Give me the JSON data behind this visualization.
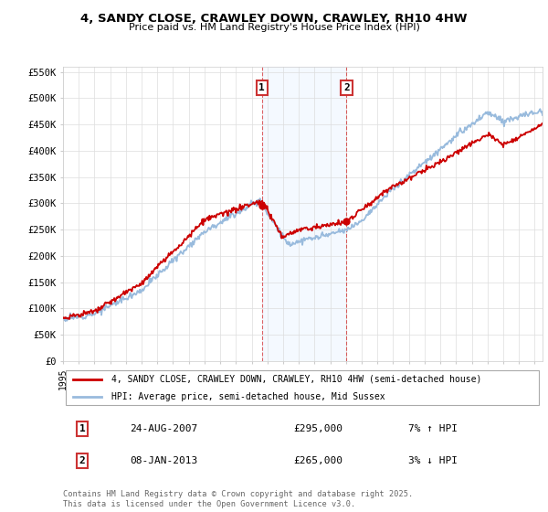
{
  "title_line1": "4, SANDY CLOSE, CRAWLEY DOWN, CRAWLEY, RH10 4HW",
  "title_line2": "Price paid vs. HM Land Registry's House Price Index (HPI)",
  "background_color": "#ffffff",
  "grid_color": "#dddddd",
  "red_line_color": "#cc0000",
  "blue_line_color": "#99bbdd",
  "shade_color": "#ddeeff",
  "vline_color": "#cc0000",
  "ylim": [
    0,
    560000
  ],
  "yticks": [
    0,
    50000,
    100000,
    150000,
    200000,
    250000,
    300000,
    350000,
    400000,
    450000,
    500000,
    550000
  ],
  "ytick_labels": [
    "£0",
    "£50K",
    "£100K",
    "£150K",
    "£200K",
    "£250K",
    "£300K",
    "£350K",
    "£400K",
    "£450K",
    "£500K",
    "£550K"
  ],
  "legend_label_red": "4, SANDY CLOSE, CRAWLEY DOWN, CRAWLEY, RH10 4HW (semi-detached house)",
  "legend_label_blue": "HPI: Average price, semi-detached house, Mid Sussex",
  "annotation1_label": "1",
  "annotation1_date": "24-AUG-2007",
  "annotation1_price": "£295,000",
  "annotation1_pct": "7% ↑ HPI",
  "annotation2_label": "2",
  "annotation2_date": "08-JAN-2013",
  "annotation2_price": "£265,000",
  "annotation2_pct": "3% ↓ HPI",
  "footer": "Contains HM Land Registry data © Crown copyright and database right 2025.\nThis data is licensed under the Open Government Licence v3.0.",
  "xstart": 1995,
  "xend": 2025.5,
  "sale1_year": 2007.65,
  "sale1_price": 295000,
  "sale2_year": 2013.03,
  "sale2_price": 265000
}
